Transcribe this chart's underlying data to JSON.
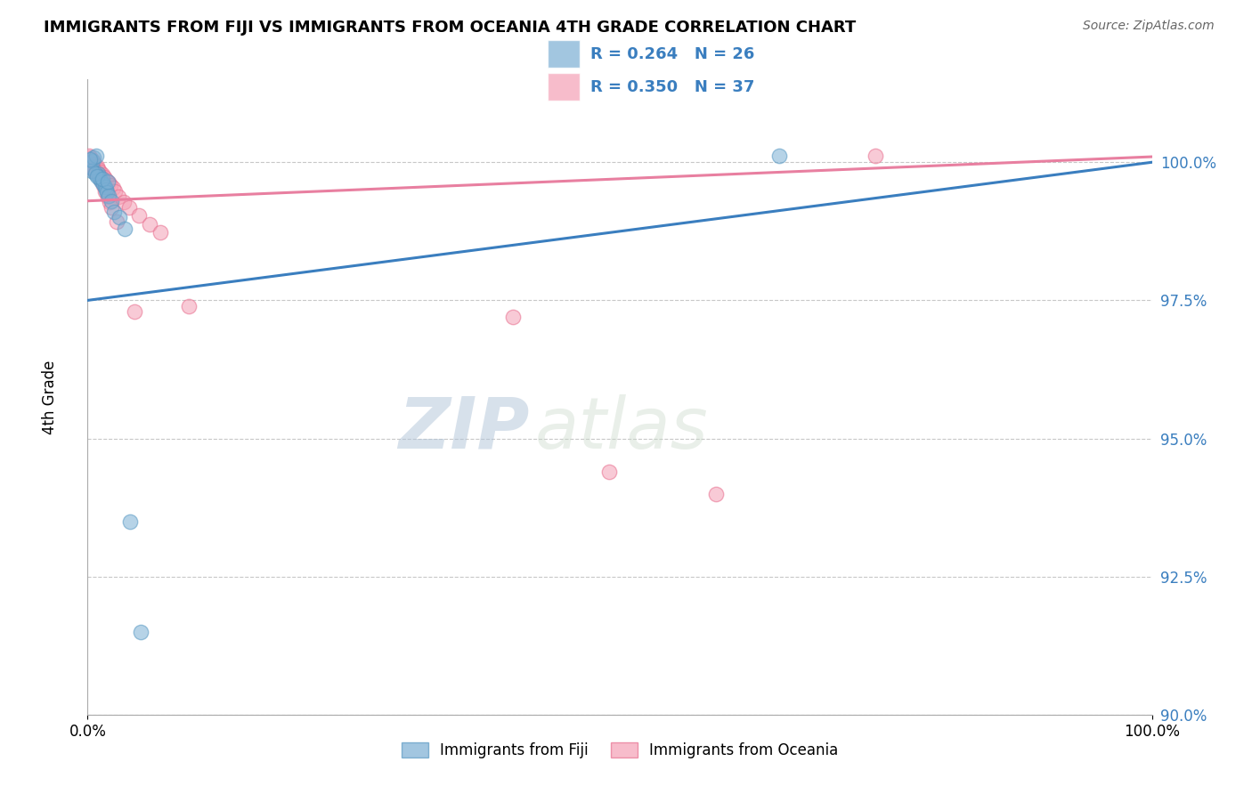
{
  "title": "IMMIGRANTS FROM FIJI VS IMMIGRANTS FROM OCEANIA 4TH GRADE CORRELATION CHART",
  "source_text": "Source: ZipAtlas.com",
  "ylabel": "4th Grade",
  "xlim": [
    0.0,
    100.0
  ],
  "ylim": [
    90.0,
    101.5
  ],
  "ytick_values": [
    90.0,
    92.5,
    95.0,
    97.5,
    100.0
  ],
  "ytick_labels": [
    "90.0%",
    "92.5%",
    "95.0%",
    "97.5%",
    "100.0%"
  ],
  "fiji_color": "#7bafd4",
  "fiji_edge_color": "#5a9ac4",
  "oceania_color": "#f4a0b5",
  "oceania_edge_color": "#e87090",
  "trend_fiji_color": "#3a7ebf",
  "trend_oceania_color": "#e87fa0",
  "fiji_R": 0.264,
  "fiji_N": 26,
  "oceania_R": 0.35,
  "oceania_N": 37,
  "legend_text_color": "#3a7ebf",
  "watermark_zip": "ZIP",
  "watermark_atlas": "atlas",
  "fiji_trend_x": [
    0.0,
    100.0
  ],
  "fiji_trend_y": [
    97.5,
    100.0
  ],
  "oceania_trend_x": [
    0.0,
    100.0
  ],
  "oceania_trend_y": [
    99.3,
    100.1
  ],
  "fiji_x": [
    0.3,
    0.5,
    0.55,
    0.8,
    1.0,
    1.05,
    1.15,
    1.3,
    1.5,
    1.6,
    1.7,
    1.8,
    2.0,
    2.2,
    0.4,
    0.7,
    0.85,
    1.4,
    1.9,
    2.5,
    3.0,
    3.5,
    4.0,
    5.0,
    65.0,
    0.2
  ],
  "fiji_y": [
    99.9,
    100.02,
    100.08,
    100.12,
    99.8,
    99.75,
    99.7,
    99.65,
    99.6,
    99.55,
    99.5,
    99.45,
    99.4,
    99.3,
    99.85,
    99.8,
    99.75,
    99.7,
    99.65,
    99.1,
    99.0,
    98.8,
    93.5,
    91.5,
    100.12,
    100.06
  ],
  "oceania_x": [
    0.25,
    0.45,
    0.65,
    0.85,
    1.0,
    1.15,
    1.35,
    1.55,
    1.75,
    1.95,
    2.15,
    2.35,
    2.55,
    2.9,
    3.4,
    3.9,
    4.8,
    5.8,
    6.8,
    0.35,
    0.55,
    0.75,
    1.05,
    1.25,
    1.45,
    1.65,
    1.85,
    2.05,
    2.25,
    2.75,
    9.5,
    40.0,
    49.0,
    59.0,
    74.0,
    0.15,
    4.4
  ],
  "oceania_y": [
    100.08,
    100.03,
    99.98,
    99.93,
    99.88,
    99.83,
    99.78,
    99.73,
    99.68,
    99.63,
    99.58,
    99.53,
    99.48,
    99.38,
    99.28,
    99.18,
    99.03,
    98.88,
    98.73,
    99.93,
    99.88,
    99.83,
    99.78,
    99.68,
    99.58,
    99.48,
    99.38,
    99.28,
    99.18,
    98.93,
    97.4,
    97.2,
    94.4,
    94.0,
    100.12,
    100.12,
    97.3
  ]
}
